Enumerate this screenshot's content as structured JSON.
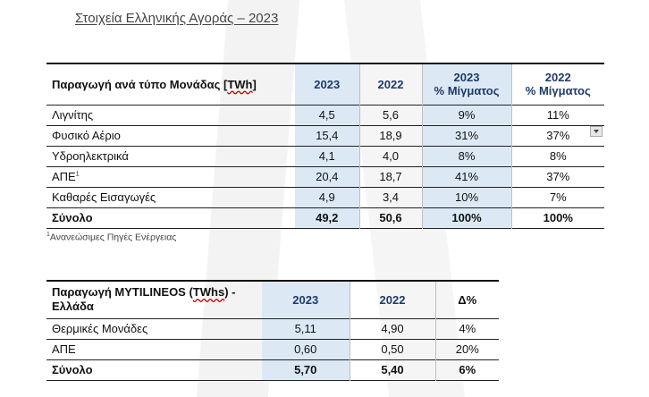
{
  "title": "Στοιχεία Ελληνικής Αγοράς – 2023",
  "table1": {
    "header": {
      "label_prefix": "Παραγωγή ανά τύπο Μονάδας [",
      "label_unit": "TWh",
      "label_suffix": "]",
      "col_2023": "2023",
      "col_2022": "2022",
      "mix_2023_year": "2023",
      "mix_2023_label": "% Μίγματος",
      "mix_2022_year": "2022",
      "mix_2022_label": "% Μίγματος"
    },
    "rows": [
      {
        "label": "Λιγνίτης",
        "sup": "",
        "v2023": "4,5",
        "v2022": "5,6",
        "m2023": "9%",
        "m2022": "11%"
      },
      {
        "label": "Φυσικό Αέριο",
        "sup": "",
        "v2023": "15,4",
        "v2022": "18,9",
        "m2023": "31%",
        "m2022": "37%"
      },
      {
        "label": "Υδροηλεκτρικά",
        "sup": "",
        "v2023": "4,1",
        "v2022": "4,0",
        "m2023": "8%",
        "m2022": "8%"
      },
      {
        "label": "ΑΠΕ",
        "sup": "1",
        "v2023": "20,4",
        "v2022": "18,7",
        "m2023": "41%",
        "m2022": "37%"
      },
      {
        "label": "Καθαρές Εισαγωγές",
        "sup": "",
        "v2023": "4,9",
        "v2022": "3,4",
        "m2023": "10%",
        "m2022": "7%"
      }
    ],
    "total": {
      "label": "Σύνολο",
      "v2023": "49,2",
      "v2022": "50,6",
      "m2023": "100%",
      "m2022": "100%"
    }
  },
  "footnote": {
    "sup": "1",
    "text": "Ανανεώσιμες Πηγές Ενέργειας"
  },
  "table2": {
    "header": {
      "label_prefix": "Παραγωγή MYTILINEOS (",
      "label_unit": "TWhs",
      "label_suffix": ") -",
      "label_line2": "Ελλάδα",
      "col_2023": "2023",
      "col_2022": "2022",
      "col_delta": "Δ%"
    },
    "rows": [
      {
        "label": "Θερμικές Μονάδες",
        "v2023": "5,11",
        "v2022": "4,90",
        "delta": "4%"
      },
      {
        "label": "ΑΠΕ",
        "v2023": "0,60",
        "v2022": "0,50",
        "delta": "20%"
      }
    ],
    "total": {
      "label": "Σύνολο",
      "v2023": "5,70",
      "v2022": "5,40",
      "delta": "6%"
    }
  },
  "colors": {
    "highlight": "#dce9f5",
    "header_blue": "#1f3a68",
    "spell_underline": "#c00000"
  },
  "icons": {
    "dropdown": "chevron-down-icon"
  }
}
